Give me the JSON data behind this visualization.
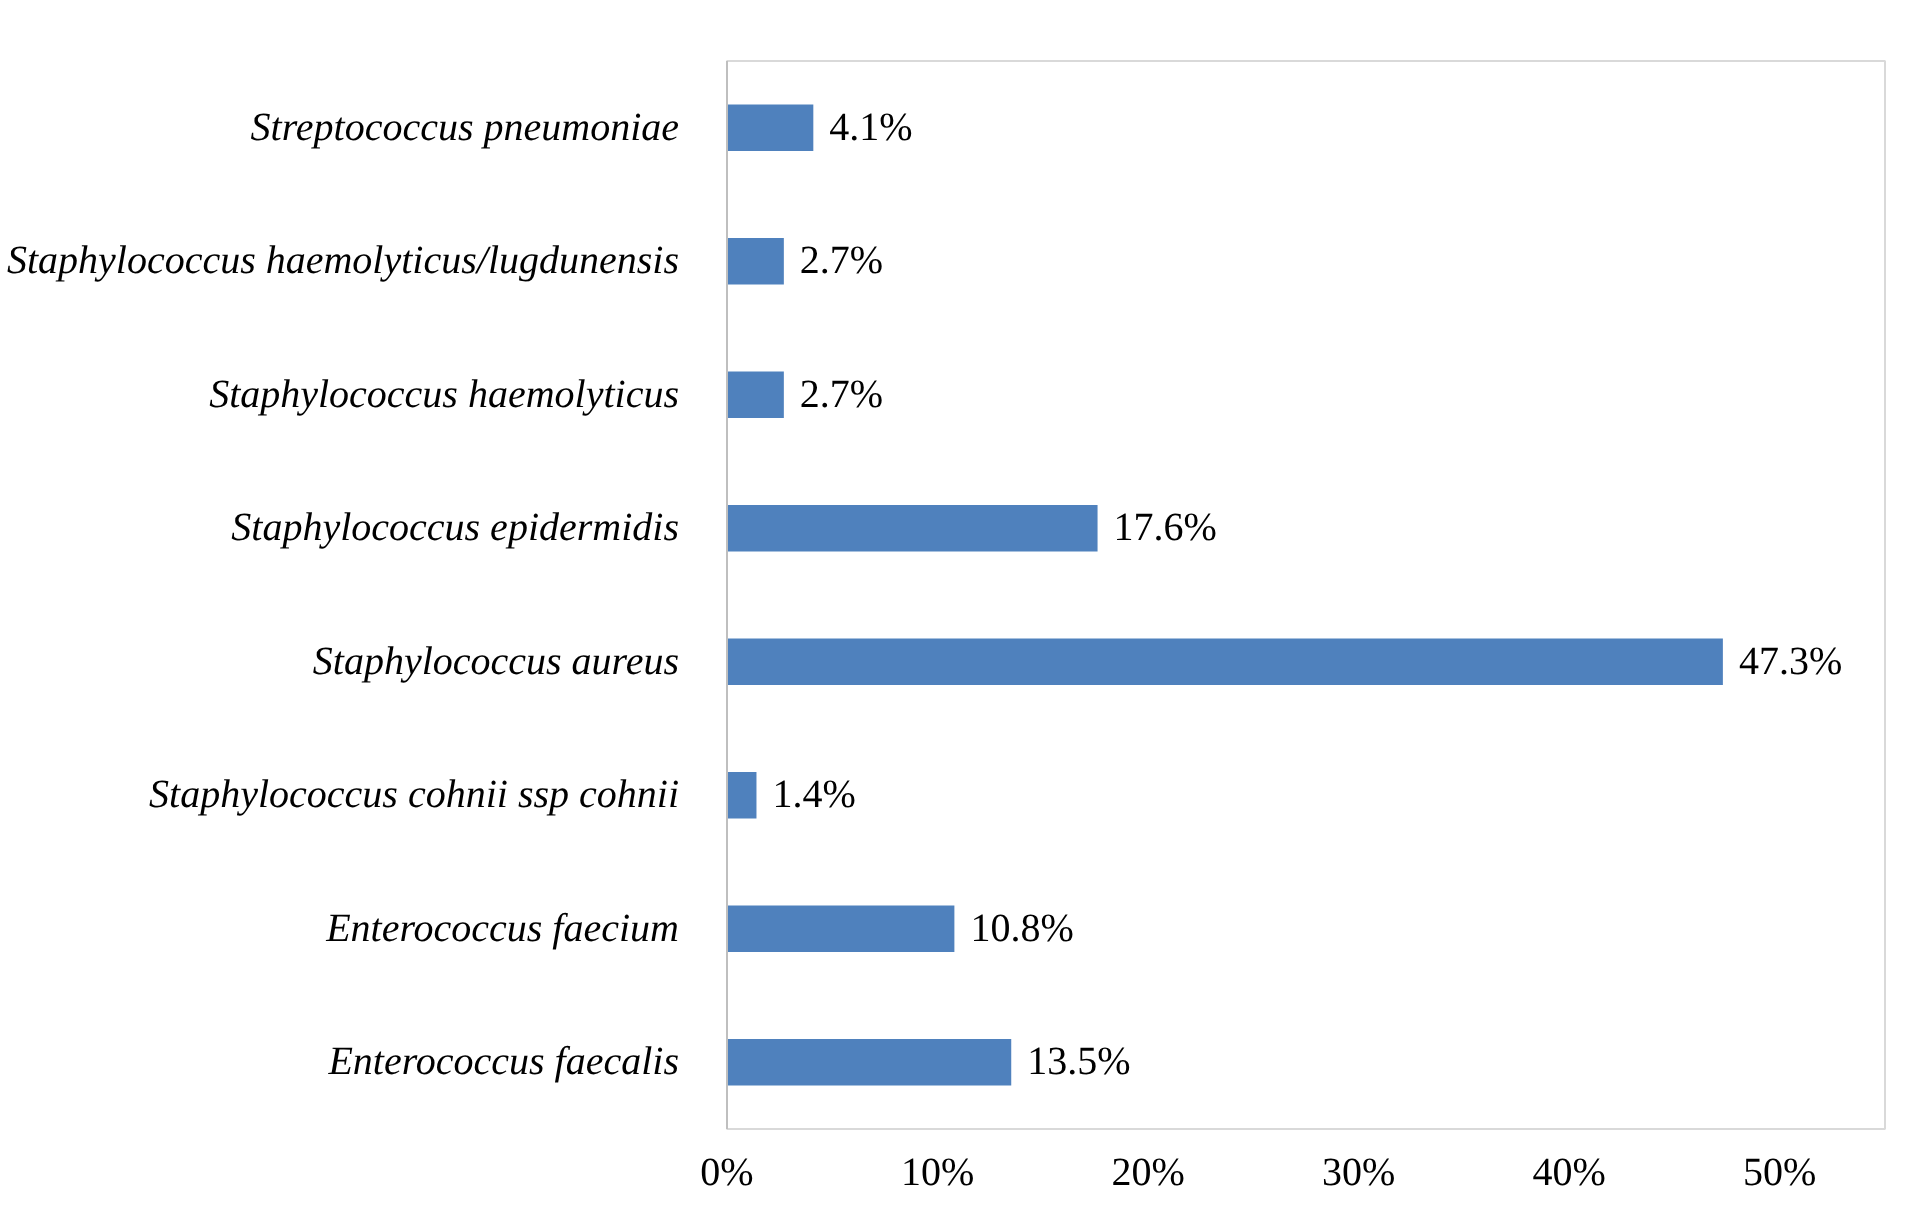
{
  "chart_data": {
    "type": "bar",
    "orientation": "horizontal",
    "categories": [
      "Streptococcus pneumoniae",
      "Staphylococcus haemolyticus/lugdunensis",
      "Staphylococcus haemolyticus",
      "Staphylococcus epidermidis",
      "Staphylococcus aureus",
      "Staphylococcus cohnii ssp cohnii",
      "Enterococcus faecium",
      "Enterococcus faecalis"
    ],
    "values": [
      4.1,
      2.7,
      2.7,
      17.6,
      47.3,
      1.4,
      10.8,
      13.5
    ],
    "value_labels": [
      "4.1%",
      "2.7%",
      "2.7%",
      "17.6%",
      "47.3%",
      "1.4%",
      "10.8%",
      "13.5%"
    ],
    "color": "#4f81bd",
    "xlim": [
      0,
      55
    ],
    "xticks": [
      {
        "value": 0,
        "label": "0%"
      },
      {
        "value": 10,
        "label": "10%"
      },
      {
        "value": 20,
        "label": "20%"
      },
      {
        "value": 30,
        "label": "30%"
      },
      {
        "value": 40,
        "label": "40%"
      },
      {
        "value": 50,
        "label": "50%"
      }
    ],
    "grid": false
  }
}
